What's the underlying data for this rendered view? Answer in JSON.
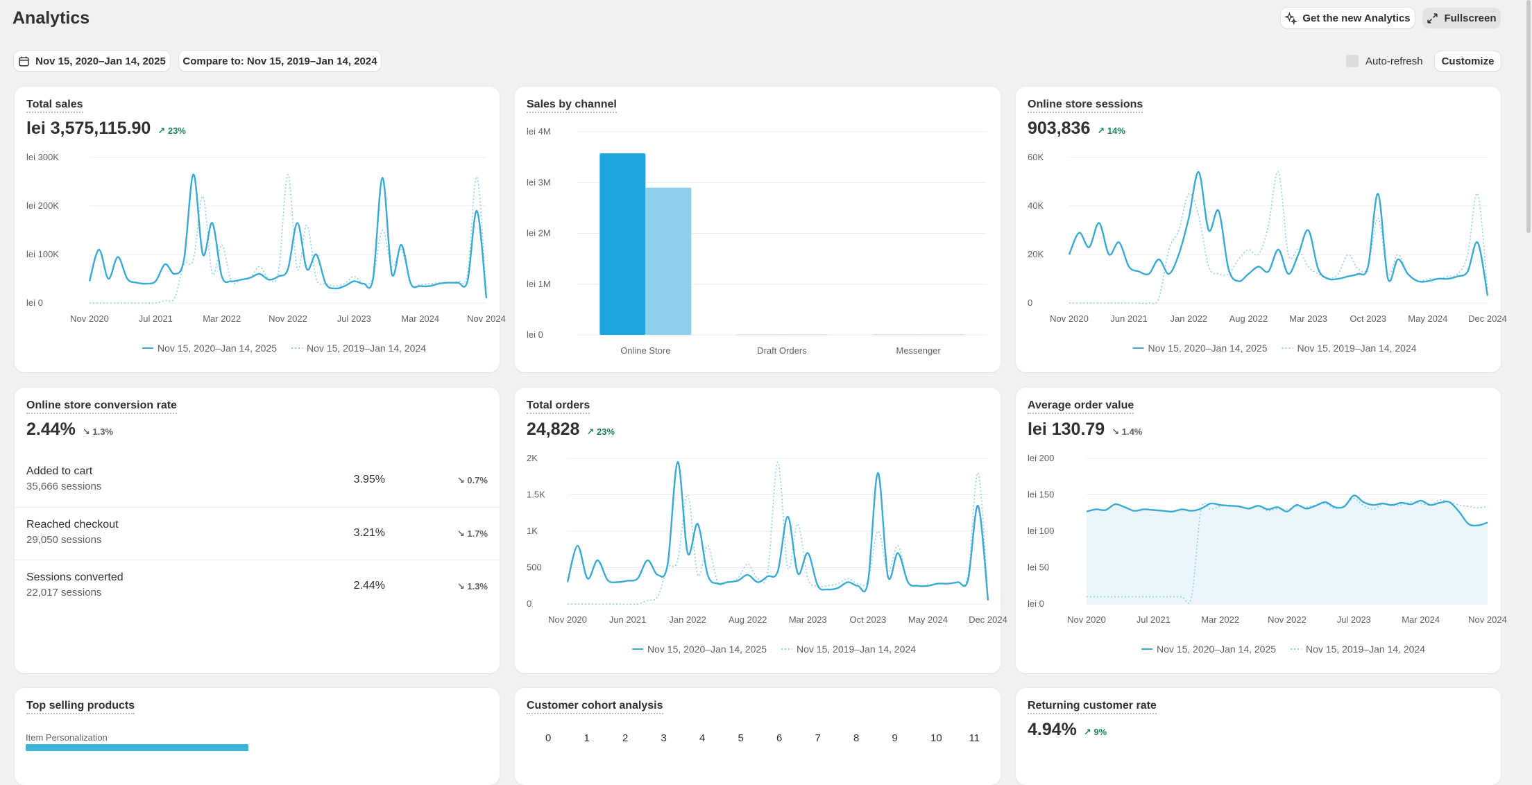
{
  "header": {
    "title": "Analytics",
    "new_analytics_label": "Get the new Analytics",
    "fullscreen_label": "Fullscreen"
  },
  "toolbar": {
    "date_range": "Nov 15, 2020–Jan 14, 2025",
    "compare_to": "Compare to: Nov 15, 2019–Jan 14, 2024",
    "auto_refresh": "Auto-refresh",
    "customize": "Customize"
  },
  "legend": {
    "current": "Nov 15, 2020–Jan 14, 2025",
    "previous": "Nov 15, 2019–Jan 14, 2024"
  },
  "colors": {
    "primary": "#3aa9d4",
    "secondary": "#8ccfe8",
    "positive": "#1a8754",
    "bar_primary": "#1ea5df",
    "bar_secondary": "#8ecfec"
  },
  "cards": {
    "total_sales": {
      "title": "Total sales",
      "value": "lei 3,575,115.90",
      "delta": "23%",
      "delta_dir": "up"
    },
    "sales_by_channel": {
      "title": "Sales by channel"
    },
    "sessions": {
      "title": "Online store sessions",
      "value": "903,836",
      "delta": "14%",
      "delta_dir": "up"
    },
    "conversion": {
      "title": "Online store conversion rate",
      "value": "2.44%",
      "delta": "1.3%",
      "delta_dir": "down",
      "rows": [
        {
          "name": "Added to cart",
          "sessions": "35,666 sessions",
          "pct": "3.95%",
          "delta": "0.7%"
        },
        {
          "name": "Reached checkout",
          "sessions": "29,050 sessions",
          "pct": "3.21%",
          "delta": "1.7%"
        },
        {
          "name": "Sessions converted",
          "sessions": "22,017 sessions",
          "pct": "2.44%",
          "delta": "1.3%"
        }
      ]
    },
    "total_orders": {
      "title": "Total orders",
      "value": "24,828",
      "delta": "23%",
      "delta_dir": "up"
    },
    "aov": {
      "title": "Average order value",
      "value": "lei 130.79",
      "delta": "1.4%",
      "delta_dir": "down"
    },
    "top_products": {
      "title": "Top selling products",
      "first_item": "Item Personalization"
    },
    "cohort": {
      "title": "Customer cohort analysis",
      "columns": [
        "0",
        "1",
        "2",
        "3",
        "4",
        "5",
        "6",
        "7",
        "8",
        "9",
        "10",
        "11"
      ]
    },
    "returning": {
      "title": "Returning customer rate",
      "value": "4.94%",
      "delta": "9%",
      "delta_dir": "up"
    }
  },
  "chart_data": [
    {
      "type": "line",
      "title": "Total sales",
      "x_ticks": [
        "Nov 2020",
        "Jul 2021",
        "Mar 2022",
        "Nov 2022",
        "Jul 2023",
        "Mar 2024",
        "Nov 2024"
      ],
      "y_ticks": [
        "lei 0",
        "lei 100K",
        "lei 200K",
        "lei 300K"
      ],
      "ylim": [
        0,
        300000
      ],
      "series": [
        {
          "name": "Nov 15, 2020–Jan 14, 2025",
          "values": [
            45000,
            110000,
            50000,
            95000,
            50000,
            42000,
            40000,
            45000,
            80000,
            60000,
            90000,
            265000,
            100000,
            165000,
            55000,
            45000,
            48000,
            52000,
            60000,
            48000,
            55000,
            70000,
            165000,
            70000,
            100000,
            40000,
            30000,
            35000,
            45000,
            40000,
            50000,
            258000,
            60000,
            120000,
            40000,
            35000,
            35000,
            40000,
            42000,
            42000,
            45000,
            190000,
            10000
          ]
        },
        {
          "name": "Nov 15, 2019–Jan 14, 2024",
          "values": [
            0,
            0,
            0,
            0,
            0,
            0,
            0,
            0,
            5000,
            10000,
            80000,
            90000,
            220000,
            60000,
            120000,
            45000,
            48000,
            52000,
            75000,
            50000,
            65000,
            265000,
            70000,
            160000,
            50000,
            40000,
            35000,
            40000,
            55000,
            40000,
            52000,
            150000,
            75000,
            110000,
            40000,
            38000,
            40000,
            42000,
            42000,
            45000,
            60000,
            260000,
            15000
          ]
        }
      ]
    },
    {
      "type": "bar",
      "title": "Sales by channel",
      "categories": [
        "Online Store",
        "Draft Orders",
        "Messenger"
      ],
      "y_ticks": [
        "lei 0",
        "lei 1M",
        "lei 2M",
        "lei 3M",
        "lei 4M"
      ],
      "ylim": [
        0,
        4000000
      ],
      "series": [
        {
          "values": [
            3575115.9,
            0,
            0
          ]
        },
        {
          "values": [
            2900000,
            0,
            0
          ]
        }
      ]
    },
    {
      "type": "line",
      "title": "Online store sessions",
      "x_ticks": [
        "Nov 2020",
        "Jun 2021",
        "Jan 2022",
        "Aug 2022",
        "Mar 2023",
        "Oct 2023",
        "May 2024",
        "Dec 2024"
      ],
      "y_ticks": [
        "0",
        "20K",
        "40K",
        "60K"
      ],
      "ylim": [
        0,
        60000
      ],
      "series": [
        {
          "name": "Nov 15, 2020–Jan 14, 2025",
          "values": [
            20000,
            29000,
            23000,
            33000,
            20000,
            25000,
            15000,
            13000,
            12000,
            18000,
            12000,
            20000,
            35000,
            54000,
            30000,
            38000,
            14000,
            9000,
            12000,
            15000,
            13000,
            22000,
            12000,
            20000,
            30000,
            14000,
            10000,
            10000,
            11000,
            12000,
            15000,
            45000,
            10000,
            18000,
            12000,
            9000,
            9000,
            10000,
            10000,
            11000,
            13000,
            25000,
            3000
          ]
        },
        {
          "name": "Nov 15, 2019–Jan 14, 2024",
          "values": [
            0,
            0,
            0,
            0,
            0,
            0,
            0,
            0,
            0,
            2000,
            22000,
            30000,
            45000,
            36000,
            15000,
            12000,
            12000,
            18000,
            22000,
            20000,
            32000,
            54000,
            20000,
            22000,
            15000,
            12000,
            10000,
            12000,
            20000,
            14000,
            15000,
            35000,
            12000,
            20000,
            12000,
            9000,
            10000,
            10000,
            11000,
            12000,
            20000,
            45000,
            5000
          ]
        }
      ]
    },
    {
      "type": "line",
      "title": "Total orders",
      "x_ticks": [
        "Nov 2020",
        "Jun 2021",
        "Jan 2022",
        "Aug 2022",
        "Mar 2023",
        "Oct 2023",
        "May 2024",
        "Dec 2024"
      ],
      "y_ticks": [
        "0",
        "500",
        "1K",
        "1.5K",
        "2K"
      ],
      "ylim": [
        0,
        2000
      ],
      "series": [
        {
          "name": "Nov 15, 2020–Jan 14, 2025",
          "values": [
            300,
            800,
            350,
            600,
            330,
            300,
            320,
            350,
            600,
            400,
            550,
            1950,
            700,
            1100,
            400,
            280,
            300,
            320,
            400,
            300,
            380,
            450,
            1200,
            420,
            700,
            250,
            200,
            220,
            300,
            250,
            300,
            1800,
            380,
            700,
            300,
            250,
            250,
            280,
            280,
            300,
            330,
            1350,
            50
          ]
        },
        {
          "name": "Nov 15, 2019–Jan 14, 2024",
          "values": [
            0,
            0,
            0,
            0,
            0,
            0,
            0,
            0,
            50,
            100,
            500,
            600,
            1500,
            400,
            800,
            300,
            300,
            350,
            550,
            350,
            450,
            1950,
            500,
            1100,
            350,
            250,
            250,
            280,
            350,
            280,
            320,
            1000,
            450,
            800,
            300,
            250,
            260,
            280,
            280,
            300,
            400,
            1800,
            80
          ]
        }
      ]
    },
    {
      "type": "area",
      "title": "Average order value",
      "x_ticks": [
        "Nov 2020",
        "Jul 2021",
        "Mar 2022",
        "Nov 2022",
        "Jul 2023",
        "Mar 2024",
        "Nov 2024"
      ],
      "y_ticks": [
        "lei 0",
        "lei 50",
        "lei 100",
        "lei 150",
        "lei 200"
      ],
      "ylim": [
        0,
        200
      ],
      "series": [
        {
          "name": "Nov 15, 2020–Jan 14, 2025",
          "values": [
            127,
            130,
            129,
            137,
            133,
            128,
            130,
            129,
            128,
            127,
            130,
            128,
            131,
            138,
            136,
            135,
            134,
            131,
            135,
            130,
            133,
            127,
            136,
            131,
            135,
            140,
            133,
            134,
            149,
            140,
            136,
            138,
            136,
            139,
            137,
            142,
            136,
            139,
            140,
            127,
            110,
            108,
            112
          ]
        },
        {
          "name": "Nov 15, 2019–Jan 14, 2024",
          "values": [
            10,
            10,
            10,
            10,
            10,
            10,
            10,
            10,
            10,
            10,
            10,
            10,
            130,
            130,
            134,
            136,
            133,
            132,
            134,
            128,
            131,
            130,
            134,
            133,
            136,
            138,
            131,
            135,
            145,
            135,
            130,
            137,
            135,
            136,
            140,
            138,
            136,
            143,
            140,
            136,
            134,
            132,
            134
          ]
        }
      ]
    }
  ]
}
